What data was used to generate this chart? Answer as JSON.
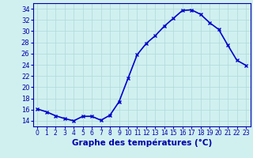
{
  "hours": [
    0,
    1,
    2,
    3,
    4,
    5,
    6,
    7,
    8,
    9,
    10,
    11,
    12,
    13,
    14,
    15,
    16,
    17,
    18,
    19,
    20,
    21,
    22,
    23
  ],
  "temperatures": [
    16.1,
    15.6,
    14.9,
    14.4,
    14.0,
    14.8,
    14.8,
    14.1,
    15.0,
    17.4,
    21.6,
    25.8,
    27.8,
    29.2,
    30.9,
    32.3,
    33.7,
    33.8,
    33.0,
    31.5,
    30.3,
    27.5,
    24.8,
    23.9
  ],
  "line_color": "#0000cc",
  "marker": "x",
  "bg_color": "#d0f0f0",
  "grid_color": "#b0d8d8",
  "xlabel": "Graphe des températures (°C)",
  "ylim": [
    13,
    35
  ],
  "yticks": [
    14,
    16,
    18,
    20,
    22,
    24,
    26,
    28,
    30,
    32,
    34
  ],
  "xlim": [
    -0.5,
    23.5
  ],
  "axis_color": "#0000aa",
  "tick_color": "#0000aa",
  "xlabel_color": "#0000aa",
  "xlabel_fontsize": 7.5,
  "linewidth": 1.2,
  "markersize": 3.5,
  "markeredgewidth": 1.0
}
